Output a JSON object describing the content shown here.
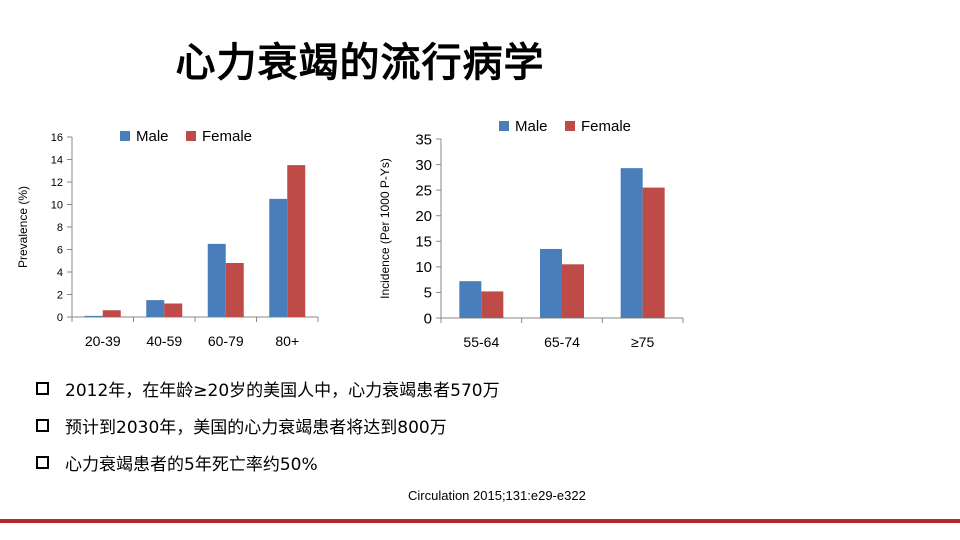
{
  "slide": {
    "title": "心力衰竭的流行病学",
    "bullets": [
      "2012年，在年龄≥20岁的美国人中，心力衰竭患者570万",
      "预计到2030年，美国的心力衰竭患者将达到800万",
      "心力衰竭患者的5年死亡率约50%"
    ],
    "citation": "Circulation 2015;131:e29-e322",
    "accent_color": "#b42a2a"
  },
  "chart_data": [
    {
      "type": "bar",
      "ylabel": "Prevalence  (%)",
      "xlabel": "",
      "ylim": [
        0,
        16
      ],
      "yticks": [
        0,
        2,
        4,
        6,
        8,
        10,
        12,
        14,
        16
      ],
      "categories": [
        "20-39",
        "40-59",
        "60-79",
        "80+"
      ],
      "legend_position": "top",
      "series": [
        {
          "name": "Male",
          "color": "#4a7ebb",
          "values": [
            0.1,
            1.5,
            6.5,
            10.5
          ]
        },
        {
          "name": "Female",
          "color": "#be4b48",
          "values": [
            0.6,
            1.2,
            4.8,
            13.5
          ]
        }
      ]
    },
    {
      "type": "bar",
      "ylabel": "Incidence  (Per 1000 P-Ys)",
      "xlabel": "",
      "ylim": [
        0,
        35
      ],
      "yticks": [
        0,
        5,
        10,
        15,
        20,
        25,
        30,
        35
      ],
      "categories": [
        "55-64",
        "65-74",
        "≥75"
      ],
      "legend_position": "top",
      "series": [
        {
          "name": "Male",
          "color": "#4a7ebb",
          "values": [
            7.2,
            13.5,
            29.3
          ]
        },
        {
          "name": "Female",
          "color": "#be4b48",
          "values": [
            5.2,
            10.5,
            25.5
          ]
        }
      ]
    }
  ]
}
